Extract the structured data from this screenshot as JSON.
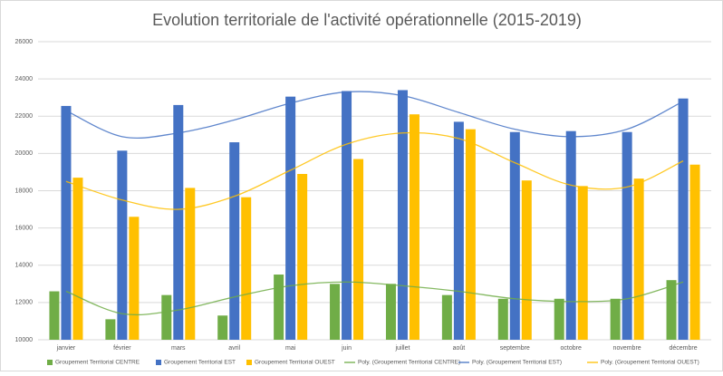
{
  "chart_data": {
    "type": "bar",
    "title": "Evolution territoriale de l'activité opérationnelle (2015-2019)",
    "categories": [
      "janvier",
      "février",
      "mars",
      "avril",
      "mai",
      "juin",
      "juillet",
      "août",
      "septembre",
      "octobre",
      "novembre",
      "décembre"
    ],
    "ylim": [
      10000,
      26000
    ],
    "yticks": [
      10000,
      12000,
      14000,
      16000,
      18000,
      20000,
      22000,
      24000,
      26000
    ],
    "grid": true,
    "legend": "bottom",
    "series": [
      {
        "name": "Groupement Territorial CENTRE",
        "type": "bar",
        "color": "#70ad47",
        "values": [
          12600,
          11100,
          12400,
          11300,
          13500,
          13000,
          13000,
          12400,
          12200,
          12200,
          12200,
          13200
        ]
      },
      {
        "name": "Groupement Territorial EST",
        "type": "bar",
        "color": "#4472c4",
        "values": [
          22550,
          20150,
          22600,
          20600,
          23050,
          23350,
          23400,
          21700,
          21150,
          21200,
          21150,
          22950
        ]
      },
      {
        "name": "Groupement Territorial OUEST",
        "type": "bar",
        "color": "#ffc000",
        "values": [
          18700,
          16600,
          18150,
          17650,
          18900,
          19700,
          22100,
          21300,
          18550,
          18250,
          18650,
          19400
        ]
      },
      {
        "name": "Poly. (Groupement Territorial CENTRE)",
        "type": "line",
        "color": "#70ad47",
        "values": [
          12600,
          11400,
          11600,
          12300,
          12900,
          13100,
          12900,
          12600,
          12200,
          12050,
          12200,
          13100
        ]
      },
      {
        "name": "Poly. (Groupement Territorial EST)",
        "type": "line",
        "color": "#4472c4",
        "values": [
          22300,
          20900,
          21100,
          21800,
          22700,
          23300,
          23100,
          22200,
          21300,
          20900,
          21300,
          22800
        ]
      },
      {
        "name": "Poly. (Groupement Territorial OUEST)",
        "type": "line",
        "color": "#ffc000",
        "values": [
          18500,
          17500,
          17000,
          17700,
          19100,
          20500,
          21100,
          20800,
          19500,
          18300,
          18200,
          19600
        ]
      }
    ]
  }
}
